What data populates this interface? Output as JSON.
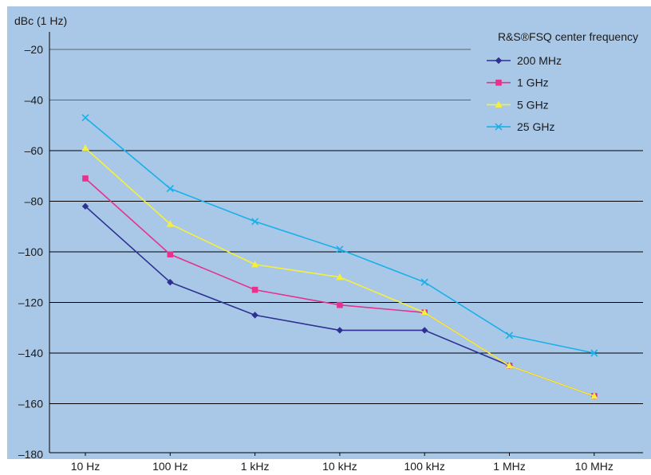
{
  "chart_data": {
    "type": "line",
    "ylabel": "dBc (1 Hz)",
    "legend_title": "R&S®FSQ center frequency",
    "legend_position": "top-right",
    "categories": [
      "10 Hz",
      "100 Hz",
      "1 kHz",
      "10 kHz",
      "100 kHz",
      "1 MHz",
      "10 MHz"
    ],
    "ylim": [
      -180,
      -10
    ],
    "yticks": [
      -20,
      -40,
      -60,
      -80,
      -100,
      -120,
      -140,
      -160,
      -180
    ],
    "ytick_labels": [
      "–20",
      "–40",
      "–60",
      "–80",
      "–100",
      "–120",
      "–140",
      "–160",
      "–180"
    ],
    "grid": true,
    "background": "#a9c8e8",
    "series": [
      {
        "name": "200 MHz",
        "color": "#2e3192",
        "marker": "diamond",
        "values": [
          -82,
          -112,
          -125,
          -131,
          -131,
          -145,
          -157
        ]
      },
      {
        "name": "1 GHz",
        "color": "#e6318d",
        "marker": "square",
        "values": [
          -71,
          -101,
          -115,
          -121,
          -124,
          -145,
          -157
        ]
      },
      {
        "name": "5 GHz",
        "color": "#f5f03a",
        "marker": "triangle",
        "values": [
          -59,
          -89,
          -105,
          -110,
          -124,
          -145,
          -157
        ]
      },
      {
        "name": "25 GHz",
        "color": "#1ab0e8",
        "marker": "x",
        "values": [
          -47,
          -75,
          -88,
          -99,
          -112,
          -133,
          -140
        ]
      }
    ]
  }
}
